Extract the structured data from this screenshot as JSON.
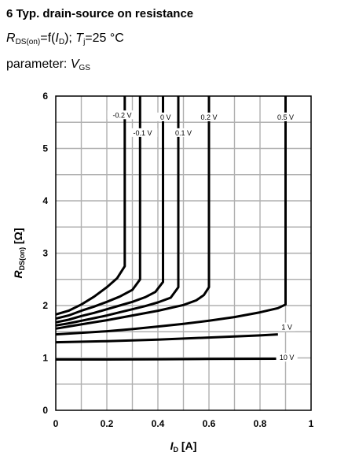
{
  "header": {
    "title": "6 Typ. drain-source on resistance",
    "formula": {
      "r": "R",
      "r_sub": "DS(on)",
      "eq": "=f(",
      "i": "I",
      "i_sub": "D",
      "close": "); ",
      "t": "T",
      "t_sub": "j",
      "temp": "=25 °C"
    },
    "param": {
      "label": "parameter: ",
      "v": "V",
      "v_sub": "GS"
    }
  },
  "chart_data": {
    "type": "line",
    "title": "",
    "xlabel": {
      "main": "I",
      "sub": "D",
      "unit": " [A]"
    },
    "ylabel": {
      "main": "R",
      "sub": "DS(on)",
      "unit": "  [Ω]"
    },
    "xlim": [
      0,
      1
    ],
    "ylim": [
      0,
      6
    ],
    "xticks": [
      0,
      0.2,
      0.4,
      0.6,
      0.8,
      1
    ],
    "xtick_labels": [
      "0",
      "0.2",
      "0.4",
      "0.6",
      "0.8",
      "1"
    ],
    "yticks": [
      0,
      1,
      2,
      3,
      4,
      5,
      6
    ],
    "ytick_labels": [
      "0",
      "1",
      "2",
      "3",
      "4",
      "5",
      "6"
    ],
    "grid": true,
    "line_color": "#000000",
    "grid_color": "#b0b0b0",
    "series": [
      {
        "name": "-0.2 V",
        "label_pos": [
          0.26,
          5.62
        ],
        "points": [
          [
            0,
            1.83
          ],
          [
            0.05,
            1.9
          ],
          [
            0.1,
            2.02
          ],
          [
            0.15,
            2.17
          ],
          [
            0.2,
            2.35
          ],
          [
            0.24,
            2.52
          ],
          [
            0.27,
            2.75
          ],
          [
            0.27,
            6
          ]
        ]
      },
      {
        "name": "-0.1 V",
        "label_pos": [
          0.34,
          5.28
        ],
        "points": [
          [
            0,
            1.75
          ],
          [
            0.05,
            1.81
          ],
          [
            0.1,
            1.9
          ],
          [
            0.15,
            1.98
          ],
          [
            0.2,
            2.07
          ],
          [
            0.25,
            2.17
          ],
          [
            0.3,
            2.3
          ],
          [
            0.33,
            2.5
          ],
          [
            0.33,
            6
          ]
        ]
      },
      {
        "name": "0 V",
        "label_pos": [
          0.43,
          5.58
        ],
        "points": [
          [
            0,
            1.68
          ],
          [
            0.05,
            1.73
          ],
          [
            0.1,
            1.8
          ],
          [
            0.15,
            1.86
          ],
          [
            0.2,
            1.93
          ],
          [
            0.25,
            2.0
          ],
          [
            0.3,
            2.07
          ],
          [
            0.35,
            2.16
          ],
          [
            0.39,
            2.26
          ],
          [
            0.42,
            2.45
          ],
          [
            0.42,
            6
          ]
        ]
      },
      {
        "name": "0.1 V",
        "label_pos": [
          0.5,
          5.28
        ],
        "points": [
          [
            0,
            1.62
          ],
          [
            0.05,
            1.66
          ],
          [
            0.1,
            1.71
          ],
          [
            0.15,
            1.76
          ],
          [
            0.2,
            1.81
          ],
          [
            0.25,
            1.87
          ],
          [
            0.3,
            1.93
          ],
          [
            0.35,
            1.99
          ],
          [
            0.4,
            2.06
          ],
          [
            0.45,
            2.15
          ],
          [
            0.48,
            2.35
          ],
          [
            0.48,
            6
          ]
        ]
      },
      {
        "name": "0.2 V",
        "label_pos": [
          0.6,
          5.58
        ],
        "points": [
          [
            0,
            1.56
          ],
          [
            0.1,
            1.64
          ],
          [
            0.2,
            1.72
          ],
          [
            0.3,
            1.81
          ],
          [
            0.4,
            1.9
          ],
          [
            0.5,
            2.01
          ],
          [
            0.55,
            2.1
          ],
          [
            0.58,
            2.2
          ],
          [
            0.6,
            2.35
          ],
          [
            0.6,
            6
          ]
        ]
      },
      {
        "name": "0.5 V",
        "label_pos": [
          0.9,
          5.58
        ],
        "points": [
          [
            0,
            1.45
          ],
          [
            0.1,
            1.48
          ],
          [
            0.2,
            1.51
          ],
          [
            0.3,
            1.55
          ],
          [
            0.4,
            1.6
          ],
          [
            0.5,
            1.65
          ],
          [
            0.6,
            1.71
          ],
          [
            0.7,
            1.78
          ],
          [
            0.8,
            1.87
          ],
          [
            0.87,
            1.95
          ],
          [
            0.9,
            2.02
          ],
          [
            0.9,
            6
          ]
        ]
      },
      {
        "name": "1 V",
        "label_pos": [
          0.905,
          1.57
        ],
        "points": [
          [
            0,
            1.3
          ],
          [
            0.2,
            1.32
          ],
          [
            0.4,
            1.35
          ],
          [
            0.6,
            1.39
          ],
          [
            0.8,
            1.43
          ],
          [
            0.87,
            1.45
          ]
        ]
      },
      {
        "name": "10 V",
        "label_pos": [
          0.905,
          0.99
        ],
        "points": [
          [
            0,
            0.97
          ],
          [
            0.2,
            0.97
          ],
          [
            0.4,
            0.975
          ],
          [
            0.6,
            0.98
          ],
          [
            0.87,
            0.985
          ]
        ]
      }
    ]
  }
}
